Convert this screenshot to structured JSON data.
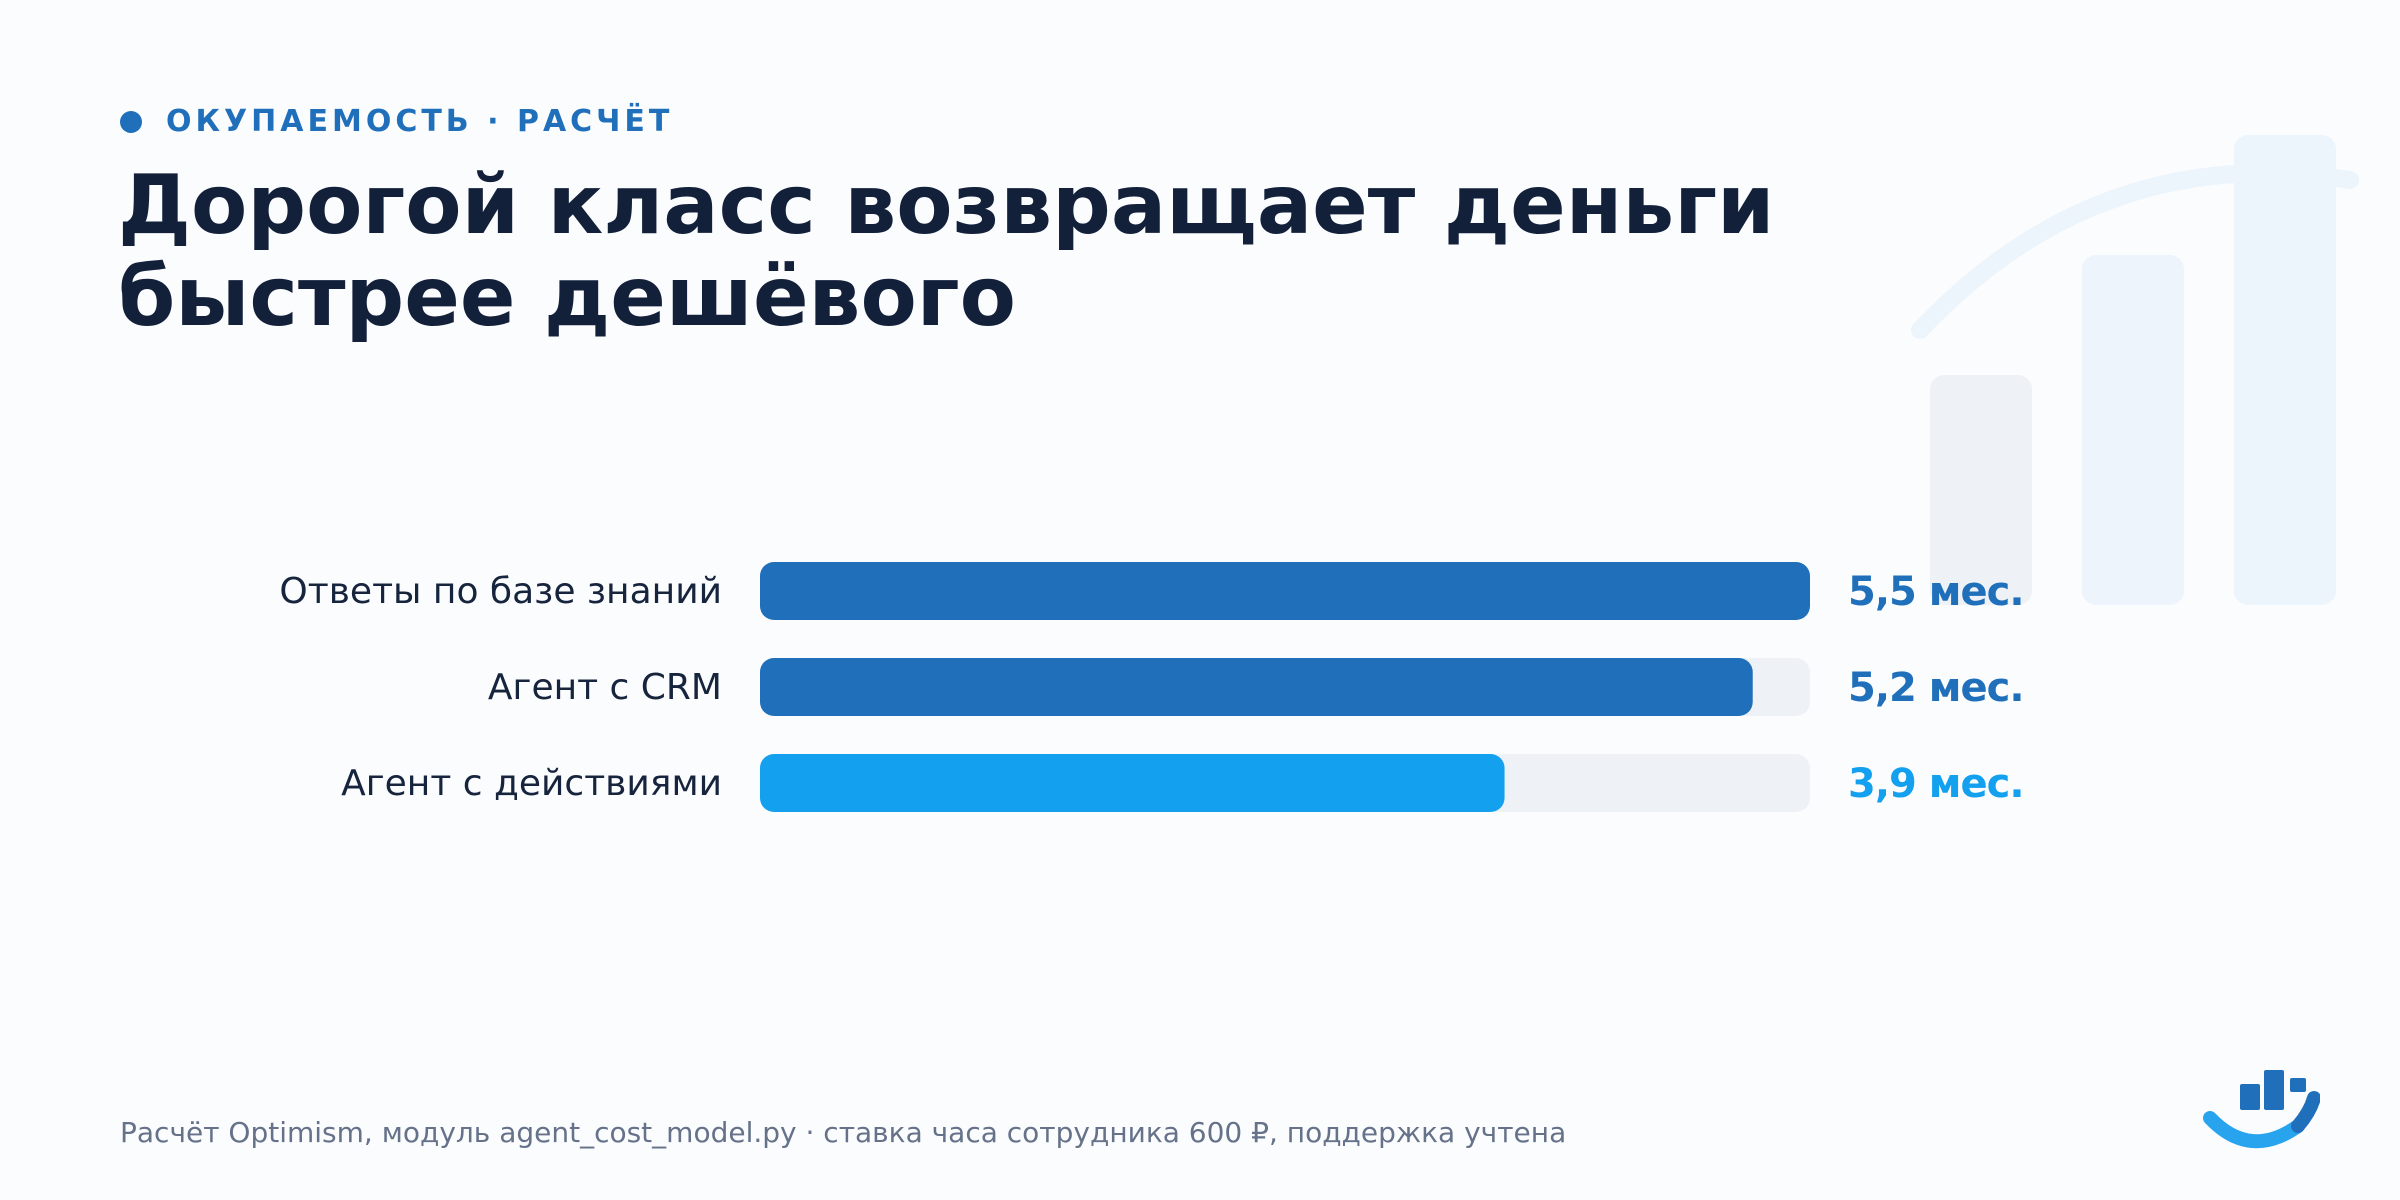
{
  "header": {
    "kicker": "ОКУПАЕМОСТЬ · РАСЧЁТ",
    "title": "Дорогой класс возвращает деньги быстрее дешёвого"
  },
  "colors": {
    "accent": "#1f6fba",
    "highlight": "#12a0ef",
    "track": "#eef2f7",
    "title": "#13203a",
    "label": "#17243d",
    "footnote": "#66728a"
  },
  "chart_data": {
    "type": "bar",
    "orientation": "horizontal",
    "categories": [
      "Ответы по базе знаний",
      "Агент с CRM",
      "Агент с действиями"
    ],
    "values": [
      5.5,
      5.2,
      3.9
    ],
    "value_labels": [
      "5,5 мес.",
      "5,2 мес.",
      "3,9 мес."
    ],
    "xlim": [
      0,
      5.5
    ],
    "grid": false,
    "legend": "none",
    "bar_colors": [
      "#1f6fba",
      "#1f6fba",
      "#12a0ef"
    ]
  },
  "footer": {
    "note": "Расчёт Optimism, модуль agent_cost_model.py · ставка часа сотрудника 600 ₽, поддержка учтена"
  }
}
